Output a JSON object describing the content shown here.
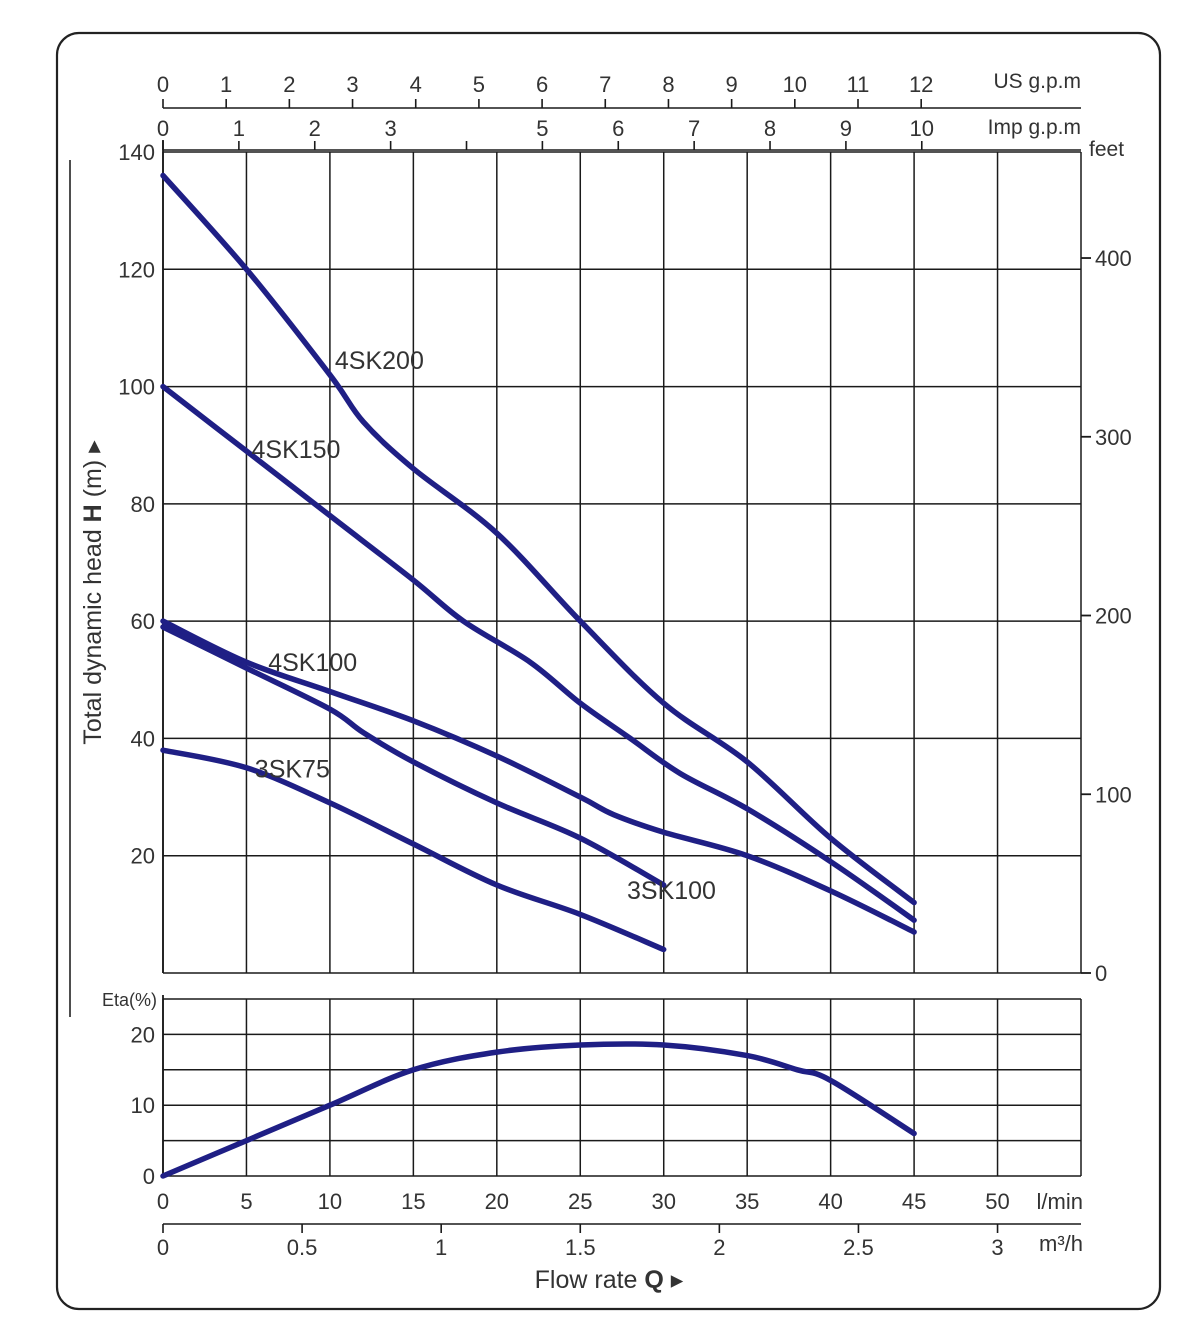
{
  "chart_data": {
    "type": "line",
    "title": "",
    "colors": {
      "curve": "#1f1f85",
      "grid": "#1a1a1a",
      "text": "#333333",
      "frame": "#222222"
    },
    "head_chart": {
      "ylabel_prefix": "Total dynamic head ",
      "ylabel_bold": "H",
      "ylabel_suffix": " (m) ▸",
      "ylim": [
        0,
        140
      ],
      "y_ticks": [
        "20",
        "40",
        "60",
        "80",
        "100",
        "120",
        "140"
      ],
      "right_axis": {
        "unit": "feet",
        "ticks": [
          "0",
          "100",
          "200",
          "300",
          "400"
        ],
        "values_ft": [
          0,
          100,
          200,
          300,
          400
        ]
      },
      "series": [
        {
          "name": "4SK200",
          "x": [
            0,
            5,
            10,
            12,
            15,
            20,
            25,
            30,
            35,
            40,
            45
          ],
          "y": [
            136,
            120,
            102,
            94,
            86,
            75,
            60,
            46,
            36,
            23,
            12
          ]
        },
        {
          "name": "4SK150",
          "x": [
            0,
            5,
            10,
            15,
            18,
            22,
            25,
            28,
            31,
            35,
            40,
            45
          ],
          "y": [
            100,
            89,
            78,
            67,
            60,
            53,
            46,
            40,
            34,
            28,
            19,
            9
          ]
        },
        {
          "name": "4SK100",
          "x": [
            0,
            5,
            10,
            15,
            20,
            25,
            27,
            30,
            35,
            40,
            45
          ],
          "y": [
            60,
            53,
            48,
            43,
            37,
            30,
            27,
            24,
            20,
            14,
            7
          ]
        },
        {
          "name": "3SK100",
          "x": [
            0,
            5,
            10,
            12,
            15,
            20,
            25,
            30
          ],
          "y": [
            59,
            52,
            45,
            41,
            36,
            29,
            23,
            15
          ]
        },
        {
          "name": "3SK75",
          "x": [
            0,
            5,
            10,
            15,
            20,
            25,
            30
          ],
          "y": [
            38,
            35,
            29,
            22,
            15,
            10,
            4
          ]
        }
      ],
      "labels": [
        "4SK200",
        "4SK150",
        "4SK100",
        "3SK100",
        "3SK75"
      ]
    },
    "efficiency_chart": {
      "ylabel": "Eta(%)",
      "ylim": [
        0,
        25
      ],
      "y_ticks": [
        "0",
        "10",
        "20"
      ],
      "series": [
        {
          "name": "Eta",
          "x": [
            0,
            5,
            10,
            15,
            20,
            25,
            30,
            35,
            38,
            40,
            45
          ],
          "y": [
            0,
            5,
            10,
            15,
            17.5,
            18.5,
            18.5,
            17,
            15,
            13.5,
            6
          ]
        }
      ]
    },
    "x_axes": {
      "l_min": {
        "unit": "l/min",
        "ticks": [
          "0",
          "5",
          "10",
          "15",
          "20",
          "25",
          "30",
          "35",
          "40",
          "45",
          "50"
        ],
        "values": [
          0,
          5,
          10,
          15,
          20,
          25,
          30,
          35,
          40,
          45,
          50
        ],
        "range": [
          0,
          55
        ]
      },
      "m3h": {
        "unit": "m³/h",
        "ticks": [
          "0",
          "0.5",
          "1",
          "1.5",
          "2",
          "2.5",
          "3"
        ],
        "values": [
          0,
          0.5,
          1,
          1.5,
          2,
          2.5,
          3
        ]
      },
      "us_gpm": {
        "unit": "US g.p.m",
        "ticks": [
          "0",
          "1",
          "2",
          "3",
          "4",
          "5",
          "6",
          "7",
          "8",
          "9",
          "10",
          "11",
          "12"
        ],
        "values": [
          0,
          1,
          2,
          3,
          4,
          5,
          6,
          7,
          8,
          9,
          10,
          11,
          12
        ]
      },
      "imp_gpm": {
        "unit": "Imp g.p.m",
        "ticks": [
          "0",
          "1",
          "2",
          "3",
          "5",
          "6",
          "7",
          "8",
          "9",
          "10"
        ],
        "values": [
          0,
          1,
          2,
          3,
          5,
          6,
          7,
          8,
          9,
          10
        ],
        "unlabeled_tick_values": [
          4
        ]
      }
    },
    "xlabel_prefix": "Flow rate ",
    "xlabel_bold": "Q",
    "xlabel_suffix": " ▸"
  }
}
